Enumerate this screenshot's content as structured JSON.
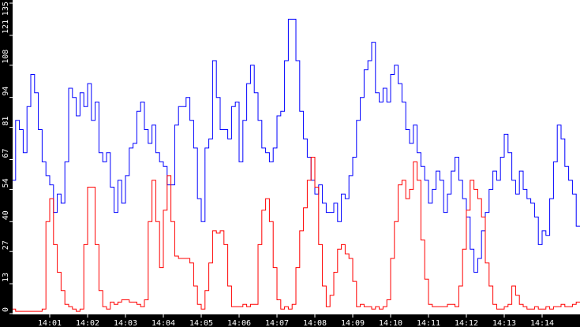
{
  "chart_data": {
    "type": "line",
    "title": "",
    "xlabel": "",
    "ylabel": "",
    "ylim": [
      0,
      135
    ],
    "grid": false,
    "legend": "none",
    "background": "#ffffff",
    "axis_background": "#000000",
    "y_ticks": [
      "0",
      "13",
      "27",
      "40",
      "54",
      "67",
      "81",
      "94",
      "108",
      "121",
      "135"
    ],
    "x_ticks": [
      "14:01",
      "14:02",
      "14:03",
      "14:04",
      "14:05",
      "14:06",
      "14:07",
      "14:08",
      "14:09",
      "14:10",
      "14:11",
      "14:12",
      "14:13",
      "14:14"
    ],
    "x_range": [
      "~14:00:00",
      "~14:14:55"
    ],
    "series": [
      {
        "name": "blue",
        "color": "#0000ff",
        "x_minutes": [
          0.0,
          0.1,
          0.2,
          0.3,
          0.4,
          0.5,
          0.6,
          0.7,
          0.8,
          0.9,
          1.0,
          1.1,
          1.2,
          1.3,
          1.4,
          1.5,
          1.6,
          1.7,
          1.8,
          1.9,
          2.0,
          2.1,
          2.2,
          2.3,
          2.4,
          2.5,
          2.6,
          2.7,
          2.8,
          2.9,
          3.0,
          3.1,
          3.2,
          3.3,
          3.4,
          3.5,
          3.6,
          3.7,
          3.8,
          3.9,
          4.0,
          4.1,
          4.2,
          4.3,
          4.4,
          4.5,
          4.6,
          4.7,
          4.8,
          4.9,
          5.0,
          5.1,
          5.2,
          5.3,
          5.4,
          5.5,
          5.6,
          5.7,
          5.8,
          5.9,
          6.0,
          6.1,
          6.2,
          6.3,
          6.4,
          6.5,
          6.6,
          6.7,
          6.8,
          6.9,
          7.0,
          7.1,
          7.2,
          7.3,
          7.4,
          7.5,
          7.6,
          7.7,
          7.8,
          7.9,
          8.0,
          8.1,
          8.2,
          8.3,
          8.4,
          8.5,
          8.6,
          8.7,
          8.8,
          8.9,
          9.0,
          9.1,
          9.2,
          9.3,
          9.4,
          9.5,
          9.6,
          9.7,
          9.8,
          9.9,
          10.0,
          10.1,
          10.2,
          10.3,
          10.4,
          10.5,
          10.6,
          10.7,
          10.8,
          10.9,
          11.0,
          11.1,
          11.2,
          11.3,
          11.4,
          11.5,
          11.6,
          11.7,
          11.8,
          11.9,
          12.0,
          12.1,
          12.2,
          12.3,
          12.4,
          12.5,
          12.6,
          12.7,
          12.8,
          12.9,
          13.0,
          13.1,
          13.2,
          13.3,
          13.4,
          13.5,
          13.6,
          13.7,
          13.8,
          13.9,
          14.0,
          14.1,
          14.2,
          14.3,
          14.4,
          14.5,
          14.6,
          14.7,
          14.8,
          14.9
        ],
        "values": [
          58,
          84,
          80,
          70,
          90,
          104,
          96,
          80,
          66,
          60,
          56,
          44,
          52,
          48,
          66,
          98,
          94,
          86,
          96,
          90,
          100,
          84,
          92,
          70,
          66,
          70,
          55,
          44,
          58,
          48,
          60,
          72,
          74,
          88,
          92,
          80,
          74,
          82,
          70,
          66,
          64,
          56,
          56,
          82,
          90,
          90,
          94,
          84,
          72,
          50,
          40,
          72,
          76,
          110,
          94,
          80,
          80,
          76,
          90,
          92,
          66,
          84,
          100,
          108,
          96,
          84,
          72,
          70,
          66,
          72,
          86,
          88,
          110,
          128,
          128,
          110,
          88,
          76,
          68,
          58,
          52,
          56,
          48,
          44,
          44,
          48,
          40,
          52,
          50,
          60,
          68,
          84,
          94,
          106,
          110,
          118,
          96,
          92,
          98,
          92,
          104,
          108,
          100,
          92,
          80,
          74,
          82,
          70,
          64,
          58,
          48,
          54,
          62,
          58,
          44,
          52,
          62,
          68,
          58,
          50,
          42,
          28,
          18,
          24,
          36,
          44,
          54,
          62,
          58,
          68,
          78,
          70,
          58,
          52,
          62,
          54,
          50,
          48,
          42,
          30,
          36,
          34,
          50,
          66,
          82,
          76,
          64,
          58,
          52,
          38
        ]
      },
      {
        "name": "red",
        "color": "#ff0000",
        "x_minutes": [
          0.0,
          0.1,
          0.2,
          0.3,
          0.4,
          0.5,
          0.6,
          0.7,
          0.8,
          0.9,
          1.0,
          1.1,
          1.2,
          1.3,
          1.4,
          1.5,
          1.6,
          1.7,
          1.8,
          1.9,
          2.0,
          2.1,
          2.2,
          2.3,
          2.4,
          2.5,
          2.6,
          2.7,
          2.8,
          2.9,
          3.0,
          3.1,
          3.2,
          3.3,
          3.4,
          3.5,
          3.6,
          3.7,
          3.8,
          3.9,
          4.0,
          4.1,
          4.2,
          4.3,
          4.4,
          4.5,
          4.6,
          4.7,
          4.8,
          4.9,
          5.0,
          5.1,
          5.2,
          5.3,
          5.4,
          5.5,
          5.6,
          5.7,
          5.8,
          5.9,
          6.0,
          6.1,
          6.2,
          6.3,
          6.4,
          6.5,
          6.6,
          6.7,
          6.8,
          6.9,
          7.0,
          7.1,
          7.2,
          7.3,
          7.4,
          7.5,
          7.6,
          7.7,
          7.8,
          7.9,
          8.0,
          8.1,
          8.2,
          8.3,
          8.4,
          8.5,
          8.6,
          8.7,
          8.8,
          8.9,
          9.0,
          9.1,
          9.2,
          9.3,
          9.4,
          9.5,
          9.6,
          9.7,
          9.8,
          9.9,
          10.0,
          10.1,
          10.2,
          10.3,
          10.4,
          10.5,
          10.6,
          10.7,
          10.8,
          10.9,
          11.0,
          11.1,
          11.2,
          11.3,
          11.4,
          11.5,
          11.6,
          11.7,
          11.8,
          11.9,
          12.0,
          12.1,
          12.2,
          12.3,
          12.4,
          12.5,
          12.6,
          12.7,
          12.8,
          12.9,
          13.0,
          13.1,
          13.2,
          13.3,
          13.4,
          13.5,
          13.6,
          13.7,
          13.8,
          13.9,
          14.0,
          14.1,
          14.2,
          14.3,
          14.4,
          14.5,
          14.6,
          14.7,
          14.8,
          14.9
        ],
        "values": [
          2,
          1,
          1,
          1,
          1,
          1,
          1,
          1,
          2,
          40,
          50,
          30,
          18,
          10,
          4,
          3,
          2,
          1,
          2,
          30,
          55,
          55,
          30,
          10,
          3,
          2,
          5,
          4,
          5,
          6,
          6,
          5,
          5,
          4,
          3,
          6,
          40,
          58,
          40,
          20,
          45,
          60,
          40,
          25,
          24,
          24,
          24,
          22,
          12,
          4,
          2,
          10,
          22,
          36,
          35,
          36,
          30,
          12,
          3,
          3,
          3,
          4,
          3,
          4,
          4,
          30,
          45,
          50,
          40,
          20,
          6,
          2,
          3,
          2,
          4,
          20,
          36,
          46,
          58,
          68,
          55,
          30,
          12,
          3,
          8,
          18,
          28,
          30,
          26,
          24,
          14,
          3,
          4,
          3,
          3,
          2,
          3,
          2,
          3,
          6,
          24,
          40,
          56,
          58,
          50,
          54,
          66,
          58,
          32,
          15,
          4,
          3,
          3,
          3,
          3,
          4,
          4,
          3,
          12,
          28,
          45,
          58,
          54,
          50,
          42,
          22,
          12,
          4,
          2,
          2,
          3,
          4,
          12,
          8,
          4,
          3,
          2,
          2,
          3,
          2,
          2,
          3,
          2,
          3,
          3,
          4,
          3,
          3,
          4,
          5
        ]
      }
    ]
  }
}
